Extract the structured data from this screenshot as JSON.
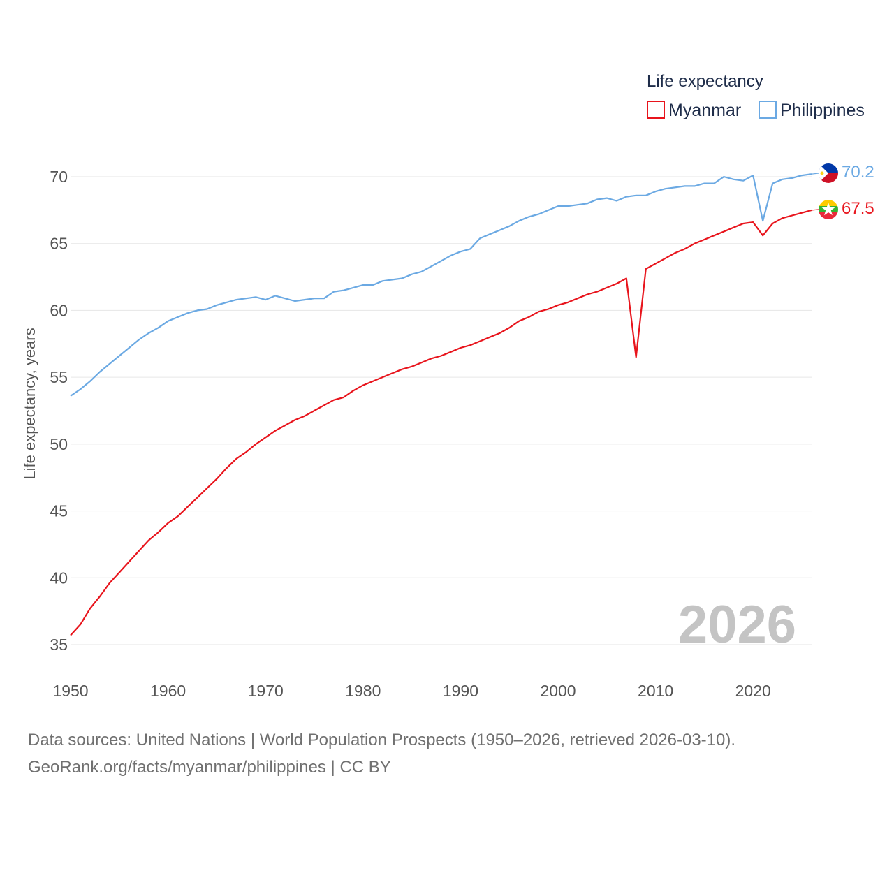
{
  "chart_data": {
    "type": "line",
    "ylabel": "Life expectancy, years",
    "xlim": [
      1950,
      2026
    ],
    "ylim": [
      33,
      72
    ],
    "x_ticks": [
      1950,
      1960,
      1970,
      1980,
      1990,
      2000,
      2010,
      2020
    ],
    "y_ticks": [
      35,
      40,
      45,
      50,
      55,
      60,
      65,
      70
    ],
    "legend": {
      "title": "Life expectancy",
      "position": "top-right"
    },
    "current_year_label": "2026",
    "series": [
      {
        "name": "Myanmar",
        "color": "#e8141c",
        "end_label": "67.5",
        "flag_icon": "myanmar-flag-icon",
        "x": [
          1950,
          1951,
          1952,
          1953,
          1954,
          1955,
          1956,
          1957,
          1958,
          1959,
          1960,
          1961,
          1962,
          1963,
          1964,
          1965,
          1966,
          1967,
          1968,
          1969,
          1970,
          1971,
          1972,
          1973,
          1974,
          1975,
          1976,
          1977,
          1978,
          1979,
          1980,
          1981,
          1982,
          1983,
          1984,
          1985,
          1986,
          1987,
          1988,
          1989,
          1990,
          1991,
          1992,
          1993,
          1994,
          1995,
          1996,
          1997,
          1998,
          1999,
          2000,
          2001,
          2002,
          2003,
          2004,
          2005,
          2006,
          2007,
          2008,
          2009,
          2010,
          2011,
          2012,
          2013,
          2014,
          2015,
          2016,
          2017,
          2018,
          2019,
          2020,
          2021,
          2022,
          2023,
          2024,
          2025,
          2026
        ],
        "values": [
          35.7,
          36.5,
          37.7,
          38.6,
          39.6,
          40.4,
          41.2,
          42.0,
          42.8,
          43.4,
          44.1,
          44.6,
          45.3,
          46.0,
          46.7,
          47.4,
          48.2,
          48.9,
          49.4,
          50.0,
          50.5,
          51.0,
          51.4,
          51.8,
          52.1,
          52.5,
          52.9,
          53.3,
          53.5,
          54.0,
          54.4,
          54.7,
          55.0,
          55.3,
          55.6,
          55.8,
          56.1,
          56.4,
          56.6,
          56.9,
          57.2,
          57.4,
          57.7,
          58.0,
          58.3,
          58.7,
          59.2,
          59.5,
          59.9,
          60.1,
          60.4,
          60.6,
          60.9,
          61.2,
          61.4,
          61.7,
          62.0,
          62.4,
          56.5,
          63.1,
          63.5,
          63.9,
          64.3,
          64.6,
          65.0,
          65.3,
          65.6,
          65.9,
          66.2,
          66.5,
          66.6,
          65.6,
          66.5,
          66.9,
          67.1,
          67.3,
          67.5
        ]
      },
      {
        "name": "Philippines",
        "color": "#6ba9e3",
        "end_label": "70.2",
        "flag_icon": "philippines-flag-icon",
        "x": [
          1950,
          1951,
          1952,
          1953,
          1954,
          1955,
          1956,
          1957,
          1958,
          1959,
          1960,
          1961,
          1962,
          1963,
          1964,
          1965,
          1966,
          1967,
          1968,
          1969,
          1970,
          1971,
          1972,
          1973,
          1974,
          1975,
          1976,
          1977,
          1978,
          1979,
          1980,
          1981,
          1982,
          1983,
          1984,
          1985,
          1986,
          1987,
          1988,
          1989,
          1990,
          1991,
          1992,
          1993,
          1994,
          1995,
          1996,
          1997,
          1998,
          1999,
          2000,
          2001,
          2002,
          2003,
          2004,
          2005,
          2006,
          2007,
          2008,
          2009,
          2010,
          2011,
          2012,
          2013,
          2014,
          2015,
          2016,
          2017,
          2018,
          2019,
          2020,
          2021,
          2022,
          2023,
          2024,
          2025,
          2026
        ],
        "values": [
          53.6,
          54.1,
          54.7,
          55.4,
          56.0,
          56.6,
          57.2,
          57.8,
          58.3,
          58.7,
          59.2,
          59.5,
          59.8,
          60.0,
          60.1,
          60.4,
          60.6,
          60.8,
          60.9,
          61.0,
          60.8,
          61.1,
          60.9,
          60.7,
          60.8,
          60.9,
          60.9,
          61.4,
          61.5,
          61.7,
          61.9,
          61.9,
          62.2,
          62.3,
          62.4,
          62.7,
          62.9,
          63.3,
          63.7,
          64.1,
          64.4,
          64.6,
          65.4,
          65.7,
          66.0,
          66.3,
          66.7,
          67.0,
          67.2,
          67.5,
          67.8,
          67.8,
          67.9,
          68.0,
          68.3,
          68.4,
          68.2,
          68.5,
          68.6,
          68.6,
          68.9,
          69.1,
          69.2,
          69.3,
          69.3,
          69.5,
          69.5,
          70.0,
          69.8,
          69.7,
          70.1,
          66.7,
          69.5,
          69.8,
          69.9,
          70.1,
          70.2
        ]
      }
    ]
  },
  "footer": {
    "sources": "Data sources: United Nations | World Population Prospects (1950–2026, retrieved 2026-03-10).",
    "attribution": "GeoRank.org/facts/myanmar/philippines | CC BY"
  }
}
